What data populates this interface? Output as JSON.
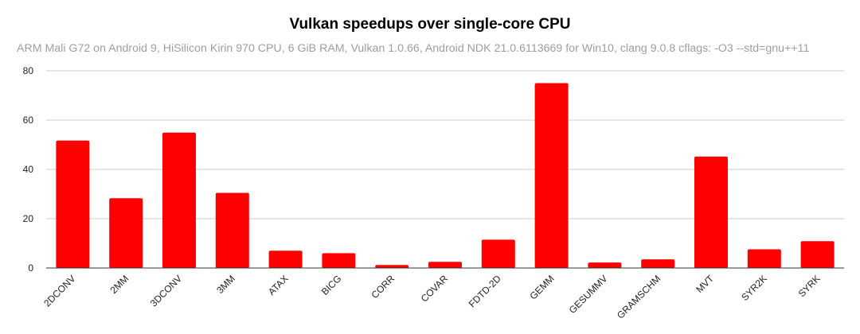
{
  "chart_data": {
    "type": "bar",
    "title": "Vulkan speedups over single-core CPU",
    "subtitle": "ARM Mali G72 on Android  9, HiSilicon Kirin 970 CPU, 6 GiB RAM, Vulkan 1.0.66, Android NDK 21.0.6113669 for Win10, clang 9.0.8 cflags: -O3 --std=gnu++11",
    "xlabel": "",
    "ylabel": "",
    "categories": [
      "2DCONV",
      "2MM",
      "3DCONV",
      "3MM",
      "ATAX",
      "BICG",
      "CORR",
      "COVAR",
      "FDTD-2D",
      "GEMM",
      "GESUMMV",
      "GRAMSCHM",
      "MVT",
      "SYR2K",
      "SYRK"
    ],
    "values": [
      51.7,
      28.3,
      54.9,
      30.5,
      7.0,
      6.0,
      1.2,
      2.5,
      11.5,
      75.0,
      2.2,
      3.5,
      45.2,
      7.6,
      10.9
    ],
    "ylim": [
      0,
      80
    ],
    "yticks": [
      0,
      20,
      40,
      60,
      80
    ],
    "grid": true,
    "legend": "none",
    "colors": {
      "bar": "#ff0000",
      "grid": "#cccccc",
      "axis": "#333333",
      "text": "#222222"
    }
  }
}
